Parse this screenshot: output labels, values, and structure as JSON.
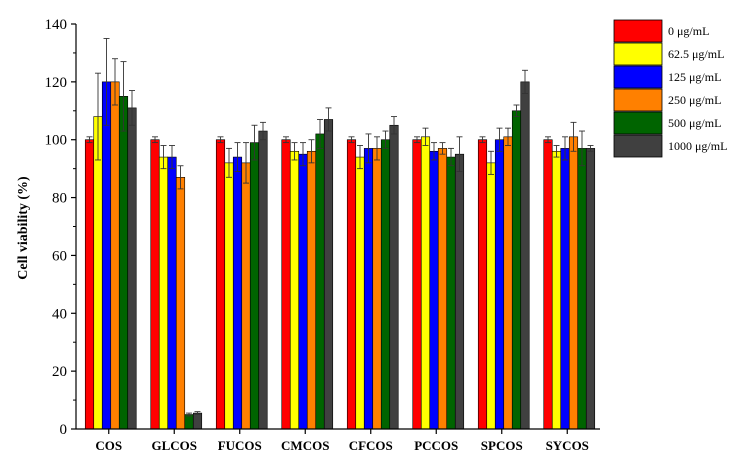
{
  "chart_data": {
    "type": "bar",
    "title": "",
    "xlabel": "",
    "ylabel": "Cell viability (%)",
    "ylim": [
      0,
      140
    ],
    "yticks": [
      "0",
      "20",
      "40",
      "60",
      "80",
      "100",
      "120",
      "140"
    ],
    "categories": [
      "COS",
      "GLCOS",
      "FUCOS",
      "CMCOS",
      "CFCOS",
      "PCCOS",
      "SPCOS",
      "SYCOS"
    ],
    "legend_position": "top-right",
    "series": [
      {
        "name": "0 μg/mL",
        "color": "#ff0000",
        "values": [
          100,
          100,
          100,
          100,
          100,
          100,
          100,
          100
        ],
        "errors": [
          1,
          1,
          1,
          1,
          1,
          1,
          1,
          1
        ]
      },
      {
        "name": "62.5 μg/mL",
        "color": "#ffff00",
        "values": [
          108,
          94,
          92,
          96,
          94,
          101,
          92,
          96
        ],
        "errors": [
          15,
          4,
          5,
          3,
          4,
          3,
          4,
          2
        ]
      },
      {
        "name": "125 μg/mL",
        "color": "#0000ff",
        "values": [
          120,
          94,
          94,
          95,
          97,
          96,
          100,
          97
        ],
        "errors": [
          15,
          4,
          5,
          4,
          5,
          3,
          4,
          4
        ]
      },
      {
        "name": "250 μg/mL",
        "color": "#ff8000",
        "values": [
          120,
          87,
          92,
          96,
          97,
          97,
          101,
          101
        ],
        "errors": [
          8,
          4,
          7,
          4,
          4,
          2,
          3,
          5
        ]
      },
      {
        "name": "500 μg/mL",
        "color": "#006400",
        "values": [
          115,
          5,
          99,
          102,
          100,
          94,
          110,
          97
        ],
        "errors": [
          12,
          0.5,
          6,
          5,
          3,
          3,
          2,
          6
        ]
      },
      {
        "name": "1000 μg/mL",
        "color": "#404040",
        "values": [
          111,
          5.5,
          103,
          107,
          105,
          95,
          120,
          97
        ],
        "errors": [
          6,
          0.5,
          3,
          4,
          3,
          6,
          4,
          1
        ]
      }
    ]
  }
}
